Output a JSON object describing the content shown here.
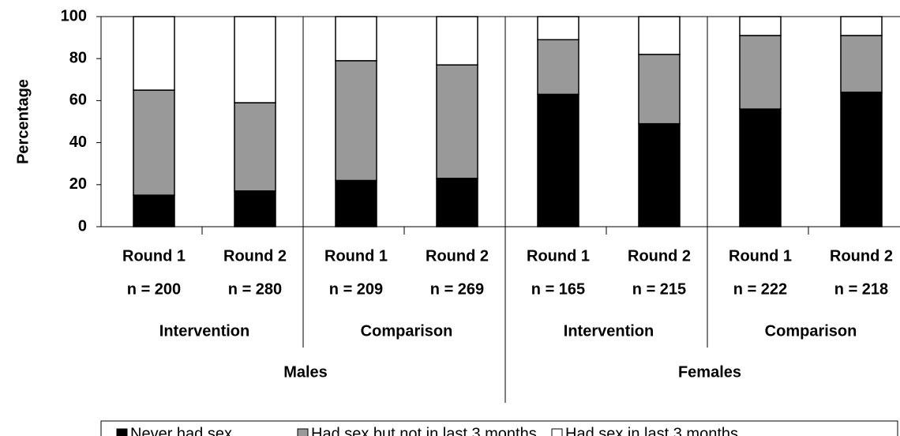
{
  "chart_data": {
    "type": "stacked_bar",
    "y_label": "Percentage",
    "categories": [
      "Round 1",
      "Round 2",
      "Round 1",
      "Round 2",
      "Round 1",
      "Round 2",
      "Round 1",
      "Round 2"
    ],
    "n_labels": [
      "n = 200",
      "n = 280",
      "n = 209",
      "n = 269",
      "n = 165",
      "n = 215",
      "n = 222",
      "n = 218"
    ],
    "subgroups": [
      "Intervention",
      "Comparison",
      "Intervention",
      "Comparison"
    ],
    "supergroups": [
      "Males",
      "Females"
    ],
    "series": [
      {
        "name": "Never had sex",
        "color": "#000000",
        "values": [
          15,
          17,
          22,
          23,
          63,
          49,
          56,
          64
        ]
      },
      {
        "name": "Had sex but not in last 3 months",
        "color": "#999999",
        "values": [
          50,
          42,
          57,
          54,
          26,
          33,
          35,
          27
        ]
      },
      {
        "name": "Had sex in last 3 months",
        "color": "#ffffff",
        "values": [
          35,
          41,
          21,
          23,
          11,
          18,
          9,
          9
        ]
      }
    ],
    "ylim": [
      0,
      100
    ],
    "yticks": [
      0,
      20,
      40,
      60,
      80,
      100
    ],
    "legend": "bottom"
  }
}
